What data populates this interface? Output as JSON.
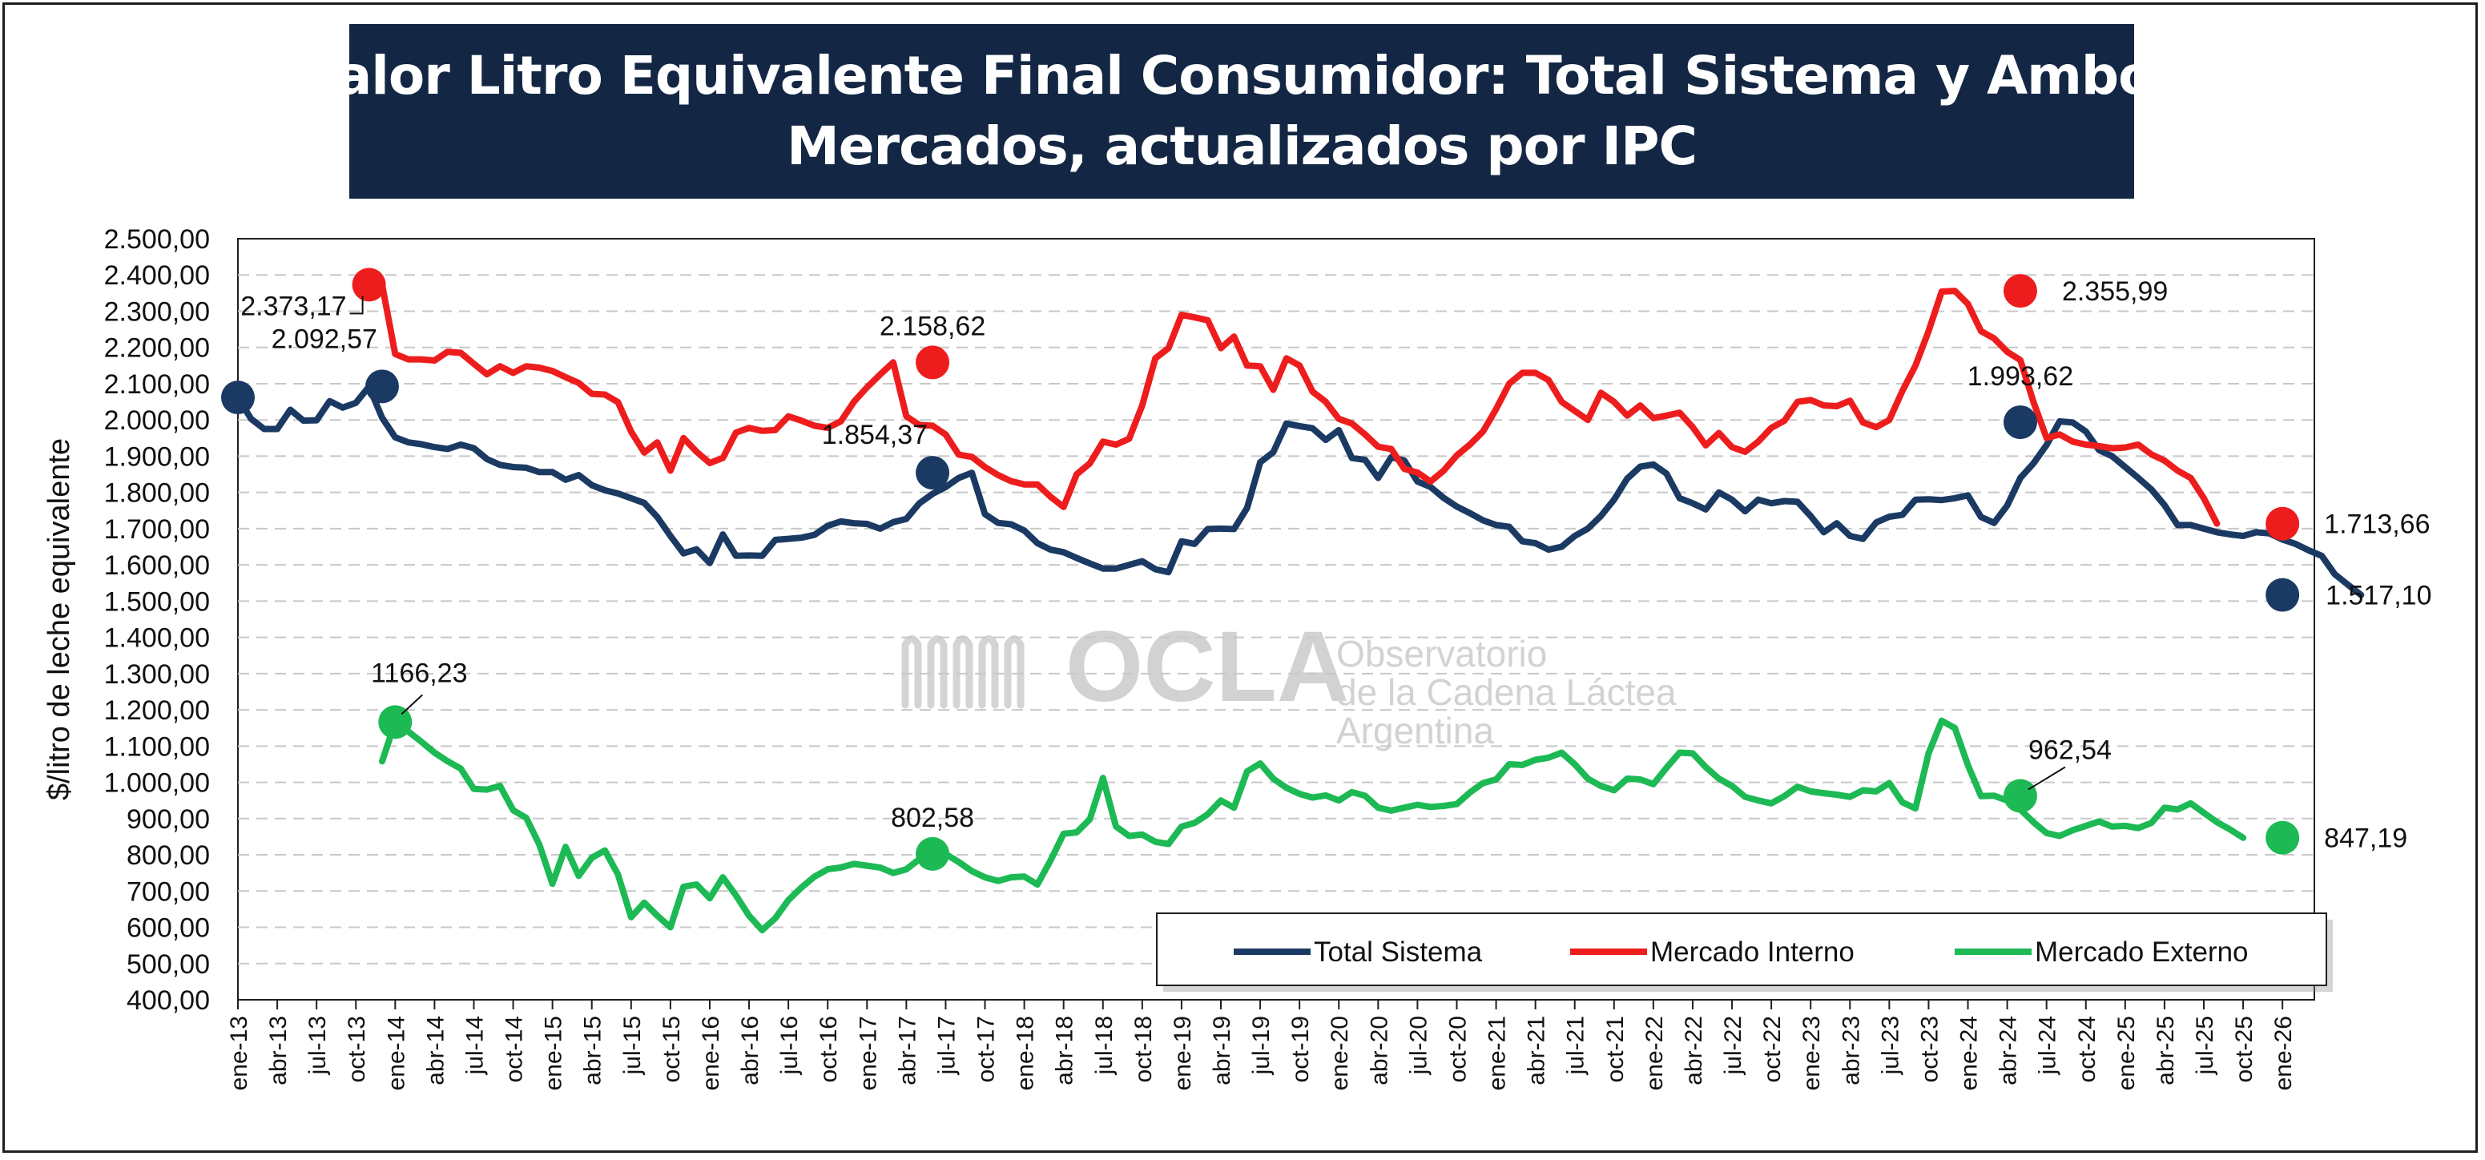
{
  "title": {
    "line1": "Valor Litro Equivalente Final Consumidor: Total Sistema y Ambos",
    "line2": "Mercados, actualizados por IPC"
  },
  "watermark": {
    "logo": "OCLA",
    "line1": "Observatorio",
    "line2": "de la Cadena Láctea",
    "line3": "Argentina"
  },
  "colors": {
    "total": "#1b3a63",
    "interno": "#ee1d1d",
    "externo": "#1db954",
    "title_bg": "#132744"
  },
  "chart_data": {
    "type": "line",
    "title": "Valor Litro Equivalente Final Consumidor: Total Sistema y Ambos Mercados, actualizados por IPC",
    "ylabel": "$/litro de leche equivalente",
    "xlabel": "",
    "ylim": [
      400,
      2500
    ],
    "y_step": 100,
    "y_ticks": [
      "400,00",
      "500,00",
      "600,00",
      "700,00",
      "800,00",
      "900,00",
      "1.000,00",
      "1.100,00",
      "1.200,00",
      "1.300,00",
      "1.400,00",
      "1.500,00",
      "1.600,00",
      "1.700,00",
      "1.800,00",
      "1.900,00",
      "2.000,00",
      "2.100,00",
      "2.200,00",
      "2.300,00",
      "2.400,00",
      "2.500,00"
    ],
    "grid": "horizontal dashed",
    "legend_position": "bottom-right",
    "x_labels": [
      "ene-13",
      "abr-13",
      "jul-13",
      "oct-13",
      "ene-14",
      "abr-14",
      "jul-14",
      "oct-14",
      "ene-15",
      "abr-15",
      "jul-15",
      "oct-15",
      "ene-16",
      "abr-16",
      "jul-16",
      "oct-16",
      "ene-17",
      "abr-17",
      "jul-17",
      "oct-17",
      "ene-18",
      "abr-18",
      "jul-18",
      "oct-18",
      "ene-19",
      "abr-19",
      "jul-19",
      "oct-19",
      "ene-20",
      "abr-20",
      "jul-20",
      "oct-20",
      "ene-21",
      "abr-21",
      "jul-21",
      "oct-21",
      "ene-22",
      "abr-22",
      "jul-22",
      "oct-22",
      "ene-23",
      "abr-23",
      "jul-23",
      "oct-23",
      "ene-24",
      "abr-24",
      "jul-24",
      "oct-24",
      "ene-25",
      "abr-25",
      "jul-25",
      "oct-25",
      "ene-26"
    ],
    "series": [
      {
        "name": "Total Sistema",
        "color": "#1b3a63",
        "start_month": "ene-13",
        "values": [
          2062,
          2003,
          1975,
          1975,
          2028,
          1998,
          1999,
          2052,
          2034,
          2047,
          2092,
          2006,
          1952,
          1938,
          1933,
          1925,
          1920,
          1932,
          1922,
          1892,
          1876,
          1870,
          1868,
          1856,
          1856,
          1835,
          1848,
          1820,
          1806,
          1797,
          1784,
          1771,
          1732,
          1680,
          1632,
          1643,
          1605,
          1684,
          1625,
          1626,
          1625,
          1669,
          1672,
          1675,
          1683,
          1708,
          1720,
          1715,
          1713,
          1700,
          1718,
          1727,
          1770,
          1796,
          1815,
          1840,
          1854,
          1740,
          1716,
          1712,
          1695,
          1660,
          1642,
          1635,
          1619,
          1604,
          1590,
          1590,
          1600,
          1610,
          1588,
          1580,
          1665,
          1658,
          1699,
          1700,
          1699,
          1757,
          1883,
          1911,
          1990,
          1983,
          1977,
          1945,
          1972,
          1895,
          1890,
          1840,
          1897,
          1888,
          1830,
          1815,
          1785,
          1761,
          1743,
          1723,
          1710,
          1705,
          1665,
          1660,
          1642,
          1650,
          1680,
          1700,
          1735,
          1780,
          1838,
          1871,
          1877,
          1852,
          1784,
          1770,
          1753,
          1800,
          1780,
          1748,
          1780,
          1770,
          1776,
          1774,
          1735,
          1690,
          1715,
          1680,
          1672,
          1717,
          1733,
          1738,
          1780,
          1781,
          1779,
          1784,
          1792,
          1732,
          1716,
          1764,
          1840,
          1880,
          1931,
          1996,
          1993,
          1968,
          1917,
          1900,
          1870,
          1840,
          1808,
          1765,
          1710,
          1710,
          1700,
          1690,
          1684,
          1680,
          1690,
          1687,
          1670,
          1658,
          1640,
          1625,
          1574,
          1545,
          1517
        ]
      },
      {
        "name": "Mercado Interno",
        "color": "#ee1d1d",
        "start_month": "dic-13",
        "values": [
          2373,
          2182,
          2167,
          2167,
          2164,
          2188,
          2185,
          2155,
          2126,
          2148,
          2130,
          2148,
          2144,
          2135,
          2118,
          2102,
          2072,
          2070,
          2049,
          1968,
          1910,
          1938,
          1860,
          1950,
          1912,
          1881,
          1895,
          1965,
          1978,
          1970,
          1972,
          2010,
          1998,
          1984,
          1978,
          1996,
          2050,
          2090,
          2125,
          2159,
          2010,
          1986,
          1984,
          1960,
          1904,
          1898,
          1870,
          1848,
          1831,
          1822,
          1822,
          1788,
          1760,
          1850,
          1880,
          1940,
          1932,
          1948,
          2040,
          2170,
          2198,
          2290,
          2283,
          2275,
          2198,
          2230,
          2150,
          2148,
          2083,
          2170,
          2150,
          2078,
          2050,
          2003,
          1990,
          1960,
          1926,
          1920,
          1865,
          1855,
          1830,
          1860,
          1902,
          1932,
          1968,
          2030,
          2100,
          2130,
          2130,
          2110,
          2050,
          2025,
          2000,
          2075,
          2050,
          2012,
          2040,
          2005,
          2012,
          2020,
          1980,
          1930,
          1964,
          1925,
          1912,
          1940,
          1978,
          1998,
          2050,
          2055,
          2040,
          2038,
          2053,
          1993,
          1980,
          2000,
          2080,
          2150,
          2245,
          2354,
          2356,
          2320,
          2245,
          2225,
          2188,
          2165,
          2050,
          1950,
          1960,
          1940,
          1932,
          1928,
          1922,
          1924,
          1932,
          1905,
          1888,
          1860,
          1840,
          1784,
          1714
        ]
      },
      {
        "name": "Mercado Externo",
        "color": "#1db954",
        "start_month": "dic-13",
        "values": [
          1058,
          1166,
          1140,
          1112,
          1082,
          1058,
          1038,
          982,
          980,
          990,
          923,
          902,
          828,
          720,
          822,
          742,
          792,
          812,
          746,
          628,
          668,
          632,
          600,
          712,
          718,
          680,
          738,
          688,
          632,
          592,
          625,
          675,
          710,
          740,
          760,
          765,
          775,
          770,
          765,
          750,
          760,
          788,
          803,
          802,
          780,
          755,
          738,
          728,
          738,
          740,
          718,
          784,
          858,
          862,
          898,
          1012,
          878,
          852,
          856,
          836,
          830,
          878,
          888,
          912,
          950,
          930,
          1030,
          1052,
          1010,
          985,
          968,
          958,
          964,
          950,
          973,
          963,
          930,
          922,
          930,
          938,
          932,
          935,
          940,
          972,
          998,
          1008,
          1050,
          1048,
          1062,
          1068,
          1082,
          1050,
          1010,
          990,
          978,
          1010,
          1008,
          995,
          1040,
          1082,
          1080,
          1042,
          1010,
          990,
          960,
          950,
          942,
          962,
          988,
          975,
          970,
          966,
          960,
          978,
          975,
          998,
          945,
          928,
          1080,
          1170,
          1150,
          1048,
          962,
          963,
          950,
          925,
          890,
          860,
          852,
          868,
          880,
          892,
          878,
          880,
          874,
          888,
          930,
          925,
          942,
          916,
          890,
          870,
          847
        ]
      }
    ],
    "annotations": [
      {
        "series": "Total Sistema",
        "month": "ene-13",
        "value": 2062,
        "text": ""
      },
      {
        "series": "Total Sistema",
        "month": "dic-13",
        "value": 2092.57,
        "text": "2.092,57"
      },
      {
        "series": "Total Sistema",
        "month": "jun-17",
        "value": 1854.37,
        "text": "1.854,37"
      },
      {
        "series": "Total Sistema",
        "month": "may-24",
        "value": 1993.62,
        "text": "1.993,62"
      },
      {
        "series": "Total Sistema",
        "month": "ene-26",
        "value": 1517.1,
        "text": "1.517,10"
      },
      {
        "series": "Mercado Interno",
        "month": "nov-13",
        "value": 2373.17,
        "text": "2.373,17"
      },
      {
        "series": "Mercado Interno",
        "month": "jun-17",
        "value": 2158.62,
        "text": "2.158,62"
      },
      {
        "series": "Mercado Interno",
        "month": "may-24",
        "value": 2355.99,
        "text": "2.355,99"
      },
      {
        "series": "Mercado Interno",
        "month": "ene-26",
        "value": 1713.66,
        "text": "1.713,66"
      },
      {
        "series": "Mercado Externo",
        "month": "ene-14",
        "value": 1166.23,
        "text": "1166,23"
      },
      {
        "series": "Mercado Externo",
        "month": "jun-17",
        "value": 802.58,
        "text": "802,58"
      },
      {
        "series": "Mercado Externo",
        "month": "may-24",
        "value": 962.54,
        "text": "962,54"
      },
      {
        "series": "Mercado Externo",
        "month": "ene-26",
        "value": 847.19,
        "text": "847,19"
      }
    ]
  }
}
